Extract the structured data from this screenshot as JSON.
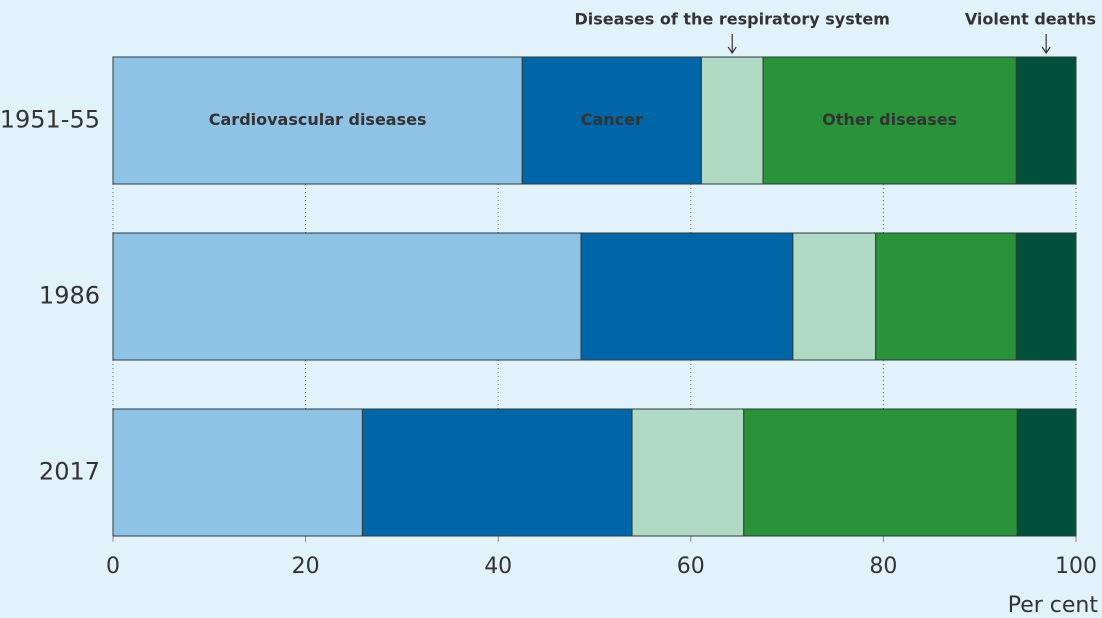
{
  "chart_data": {
    "type": "stacked_bar_horizontal",
    "categories": [
      "1951-55",
      "1986",
      "2017"
    ],
    "series": [
      {
        "name": "Cardiovascular diseases",
        "color": "#8fc3e6",
        "values": [
          42.5,
          48.6,
          25.9
        ]
      },
      {
        "name": "Cancer",
        "color": "#0066a8",
        "values": [
          18.6,
          22.0,
          28.0
        ]
      },
      {
        "name": "Diseases of the respiratory system",
        "color": "#b0d9c3",
        "values": [
          6.4,
          8.6,
          11.6
        ]
      },
      {
        "name": "Other diseases",
        "color": "#2a933a",
        "values": [
          26.3,
          14.6,
          28.4
        ]
      },
      {
        "name": "Violent deaths",
        "color": "#00503a",
        "values": [
          6.2,
          6.2,
          6.1
        ]
      }
    ],
    "xlim": [
      0,
      100
    ],
    "xticks": [
      0,
      20,
      40,
      60,
      80,
      100
    ],
    "xlabel": "Per cent",
    "grid": true
  }
}
